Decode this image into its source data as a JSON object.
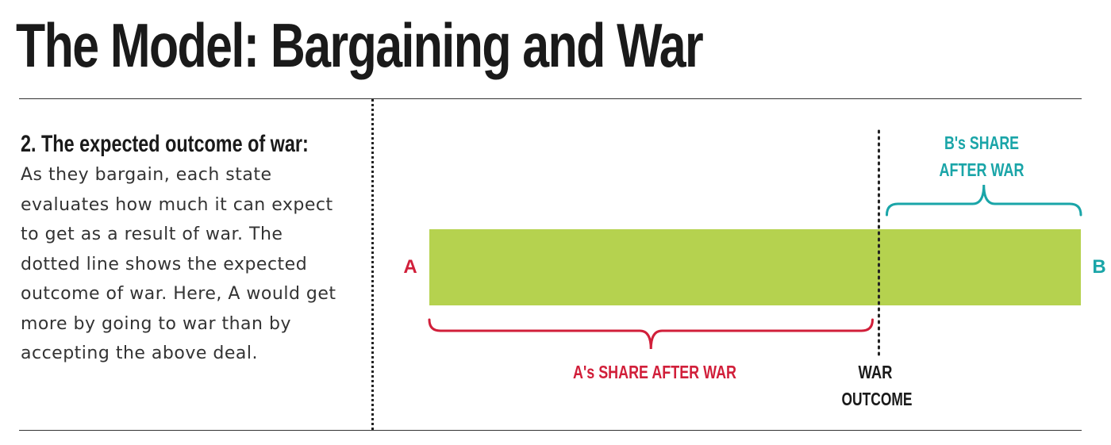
{
  "title": "The Model: Bargaining and War",
  "section": {
    "heading": "2. The expected outcome of war:",
    "body": "As they bargain, each state evaluates how much it can expect to get as a result of war. The dotted line shows the expected outcome of war. Here, A would get more by going to war than by accepting the above deal."
  },
  "diagram": {
    "endpoint_a": "A",
    "endpoint_b": "B",
    "a_share_label": "A's SHARE AFTER WAR",
    "b_share_label_line1": "B's SHARE",
    "b_share_label_line2": "AFTER WAR",
    "war_outcome_line1": "WAR",
    "war_outcome_line2": "OUTCOME",
    "war_outcome_fraction": 0.69,
    "colors": {
      "bar": "#b5d24f",
      "a_label": "#d11f3a",
      "b_label": "#1aa5a8",
      "text": "#1a1a1a"
    }
  }
}
